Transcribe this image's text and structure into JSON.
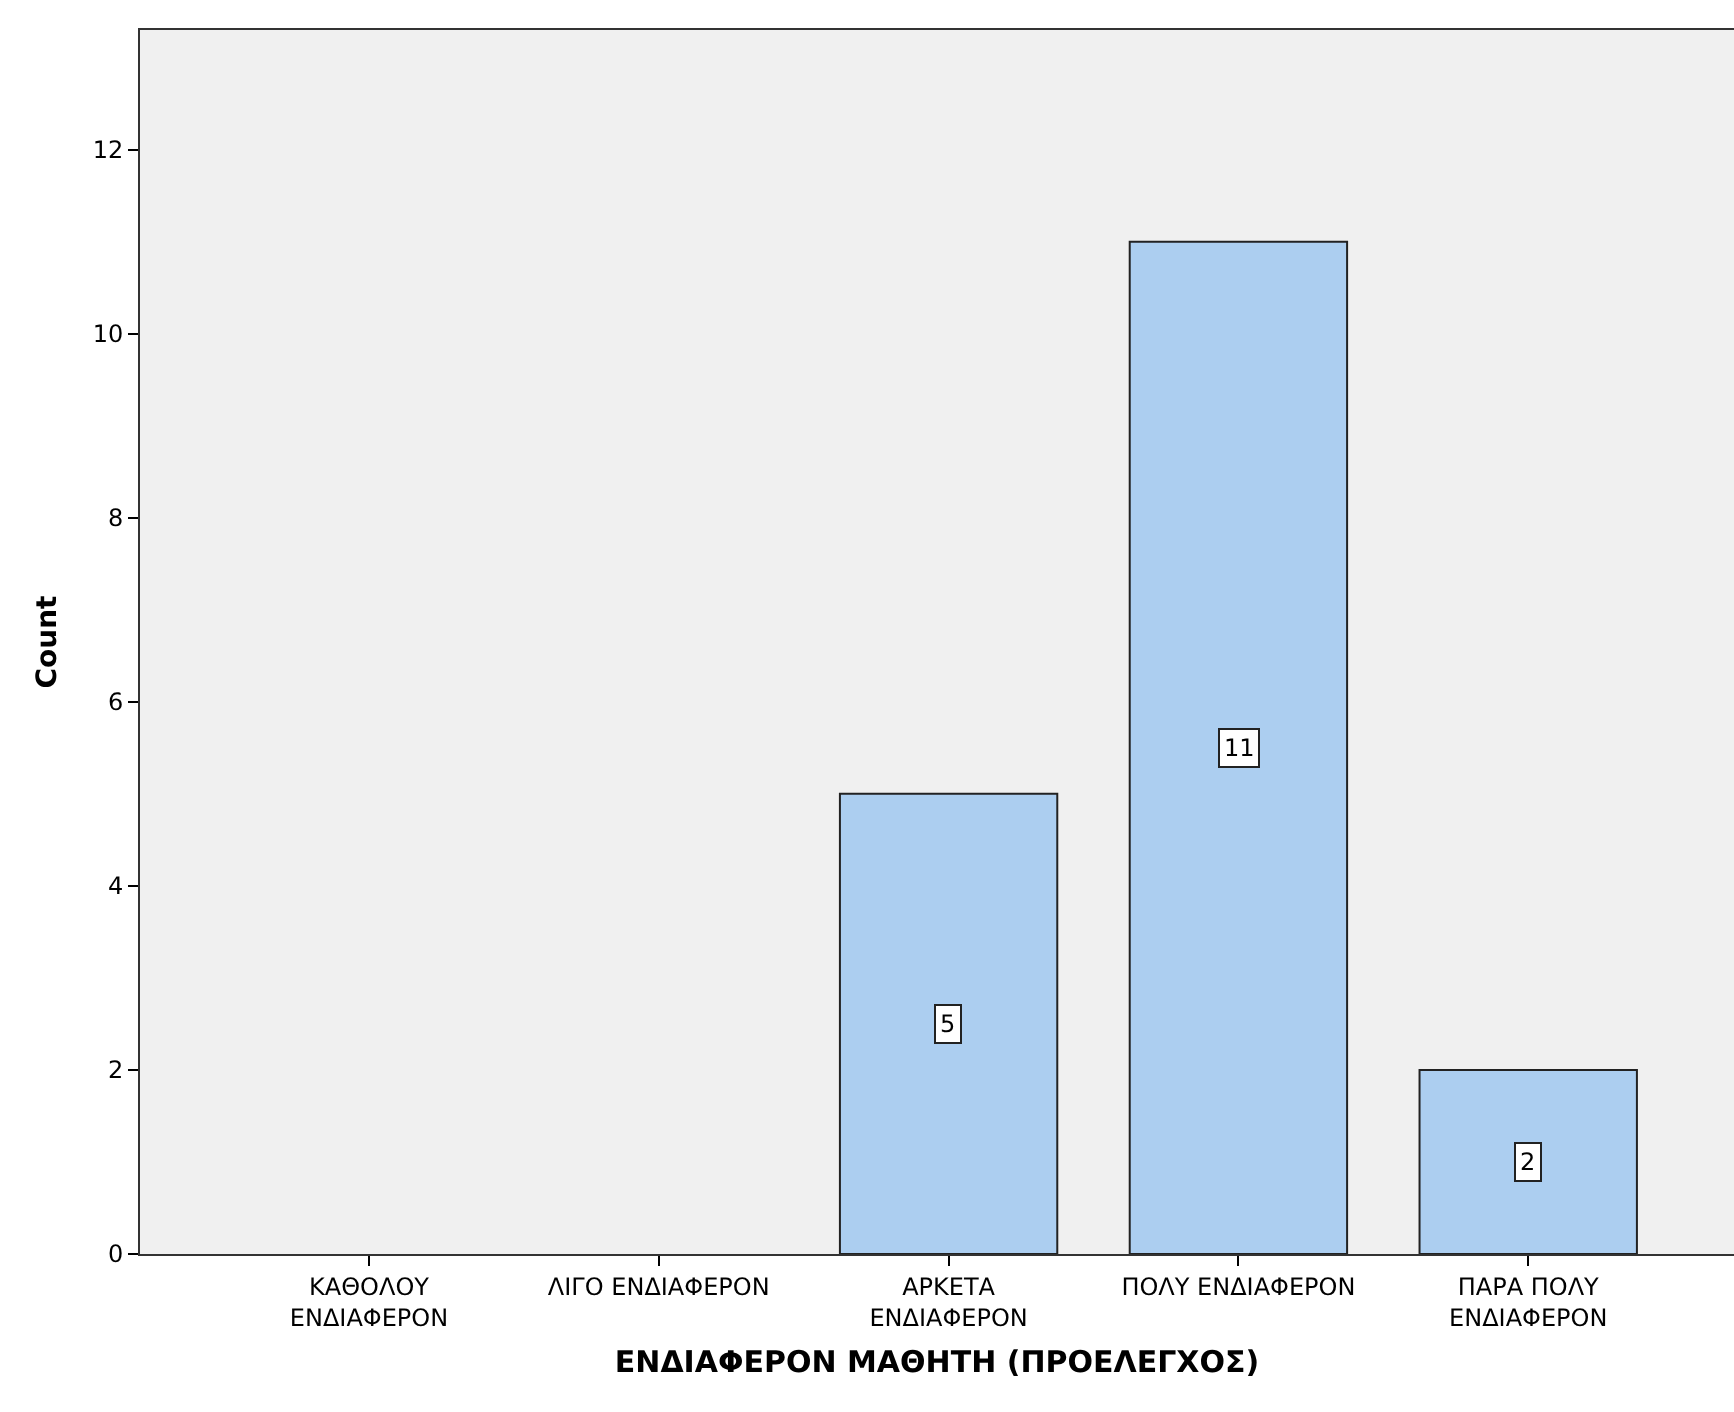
{
  "chart_data": {
    "type": "bar",
    "xlabel": "ΕΝΔΙΑΦΕΡΟΝ ΜΑΘΗΤΗ (ΠΡΟΕΛΕΓΧΟΣ)",
    "ylabel": "Count",
    "categories": [
      "ΚΑΘΟΛΟΥ ΕΝΔΙΑΦΕΡΟΝ",
      "ΛΙΓΟ ΕΝΔΙΑΦΕΡΟΝ",
      "ΑΡΚΕΤΑ ΕΝΔΙΑΦΕΡΟΝ",
      "ΠΟΛΥ ΕΝΔΙΑΦΕΡΟΝ",
      "ΠΑΡΑ ΠΟΛΥ ΕΝΔΙΑΦΕΡΟΝ"
    ],
    "values": [
      0,
      0,
      5,
      11,
      2
    ],
    "value_labels": [
      null,
      null,
      "5",
      "11",
      "2"
    ],
    "color": "#accef0",
    "ylim": [
      0,
      13.3
    ],
    "yticks": [
      0,
      2,
      4,
      6,
      8,
      10,
      12
    ],
    "grid": false
  }
}
